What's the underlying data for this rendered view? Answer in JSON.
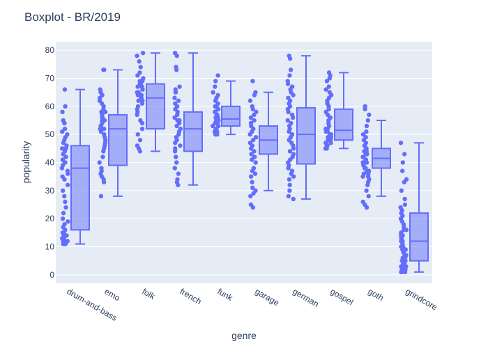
{
  "chart_data": {
    "type": "box",
    "title": "Boxplot - BR/2019",
    "xlabel": "genre",
    "ylabel": "popularity",
    "ylim": [
      -3,
      83
    ],
    "yticks": [
      0,
      10,
      20,
      30,
      40,
      50,
      60,
      70,
      80
    ],
    "grid": true,
    "boxpoints": "all",
    "colors": {
      "box": "#636efa",
      "plot_bg": "#e5ecf6",
      "grid": "#ffffff",
      "text": "#2a3f5f"
    },
    "categories": [
      "drum-and-bass",
      "emo",
      "folk",
      "french",
      "funk",
      "garage",
      "german",
      "gospel",
      "goth",
      "grindcore"
    ],
    "boxes": [
      {
        "category": "drum-and-bass",
        "min": 11,
        "q1": 16,
        "median": 38,
        "q3": 46,
        "max": 66,
        "points": [
          66,
          60,
          58,
          55,
          54,
          52,
          51,
          50,
          49,
          48,
          47,
          46,
          45,
          45,
          44,
          43,
          42,
          41,
          40,
          40,
          39,
          38,
          37,
          36,
          35,
          34,
          32,
          30,
          28,
          26,
          24,
          22,
          20,
          19,
          18,
          17,
          16,
          15,
          15,
          14,
          14,
          13,
          13,
          12,
          12,
          12,
          11,
          11,
          11,
          11
        ]
      },
      {
        "category": "emo",
        "min": 28,
        "q1": 39,
        "median": 52,
        "q3": 57,
        "max": 73,
        "points": [
          73,
          73,
          66,
          65,
          64,
          63,
          62,
          61,
          60,
          59,
          58,
          58,
          57,
          56,
          56,
          55,
          55,
          54,
          53,
          53,
          52,
          52,
          51,
          50,
          49,
          48,
          47,
          46,
          45,
          44,
          42,
          40,
          38,
          37,
          36,
          35,
          34,
          33,
          28
        ]
      },
      {
        "category": "folk",
        "min": 44,
        "q1": 52,
        "median": 63,
        "q3": 68,
        "max": 79,
        "points": [
          79,
          78,
          76,
          74,
          72,
          71,
          70,
          69,
          69,
          68,
          68,
          67,
          67,
          66,
          65,
          65,
          64,
          64,
          63,
          63,
          62,
          62,
          61,
          60,
          59,
          58,
          57,
          55,
          54,
          52,
          50,
          48,
          46,
          45,
          44
        ]
      },
      {
        "category": "french",
        "min": 32,
        "q1": 44,
        "median": 52,
        "q3": 58,
        "max": 79,
        "points": [
          79,
          78,
          74,
          73,
          67,
          66,
          65,
          63,
          62,
          61,
          60,
          59,
          58,
          57,
          56,
          55,
          55,
          54,
          53,
          52,
          51,
          50,
          49,
          48,
          47,
          46,
          45,
          44,
          42,
          40,
          38,
          36,
          34,
          33,
          32
        ]
      },
      {
        "category": "funk",
        "min": 50,
        "q1": 53,
        "median": 55.5,
        "q3": 60,
        "max": 69,
        "points": [
          71,
          69,
          67,
          65,
          64,
          63,
          62,
          61,
          60,
          60,
          59,
          59,
          58,
          58,
          57,
          57,
          56,
          56,
          55,
          55,
          54,
          54,
          53,
          53,
          52,
          52,
          51,
          51,
          50,
          50
        ]
      },
      {
        "category": "garage",
        "min": 30,
        "q1": 43,
        "median": 48,
        "q3": 53,
        "max": 65,
        "points": [
          69,
          65,
          64,
          62,
          60,
          59,
          58,
          57,
          56,
          55,
          54,
          53,
          52,
          51,
          50,
          49,
          48,
          47,
          46,
          45,
          44,
          43,
          42,
          41,
          40,
          38,
          37,
          36,
          35,
          33,
          31,
          30,
          29,
          28,
          25,
          24
        ]
      },
      {
        "category": "german",
        "min": 27,
        "q1": 39.5,
        "median": 50,
        "q3": 59.5,
        "max": 78,
        "points": [
          78,
          77,
          73,
          71,
          69,
          68,
          67,
          66,
          65,
          64,
          63,
          62,
          61,
          60,
          59,
          58,
          57,
          56,
          55,
          54,
          53,
          52,
          51,
          50,
          49,
          48,
          47,
          46,
          45,
          44,
          43,
          42,
          41,
          40,
          39,
          38,
          37,
          36,
          35,
          34,
          32,
          30,
          28,
          27
        ]
      },
      {
        "category": "gospel",
        "min": 45,
        "q1": 48,
        "median": 51.5,
        "q3": 59,
        "max": 72,
        "points": [
          72,
          71,
          70,
          69,
          67,
          66,
          65,
          64,
          63,
          62,
          61,
          60,
          59,
          58,
          57,
          56,
          56,
          55,
          54,
          53,
          52,
          52,
          51,
          51,
          50,
          50,
          49,
          49,
          48,
          48,
          47,
          47,
          46,
          46,
          45,
          45
        ]
      },
      {
        "category": "goth",
        "min": 28,
        "q1": 38,
        "median": 41.5,
        "q3": 45,
        "max": 55,
        "points": [
          60,
          59,
          57,
          55,
          53,
          51,
          50,
          49,
          48,
          47,
          46,
          46,
          45,
          45,
          44,
          44,
          43,
          43,
          42,
          42,
          41,
          41,
          40,
          40,
          39,
          39,
          38,
          38,
          37,
          37,
          36,
          36,
          35,
          35,
          34,
          33,
          32,
          30,
          28,
          26,
          25,
          24
        ]
      },
      {
        "category": "grindcore",
        "min": 1,
        "q1": 5,
        "median": 12,
        "q3": 22,
        "max": 47,
        "points": [
          47,
          43,
          40,
          37,
          34,
          33,
          30,
          27,
          25,
          24,
          23,
          22,
          21,
          20,
          19,
          18,
          17,
          16,
          16,
          15,
          14,
          14,
          13,
          13,
          12,
          12,
          11,
          10,
          10,
          9,
          9,
          8,
          8,
          7,
          7,
          6,
          6,
          6,
          5,
          5,
          5,
          4,
          4,
          4,
          3,
          3,
          3,
          2,
          2,
          2,
          1,
          1,
          1,
          1
        ]
      }
    ]
  }
}
